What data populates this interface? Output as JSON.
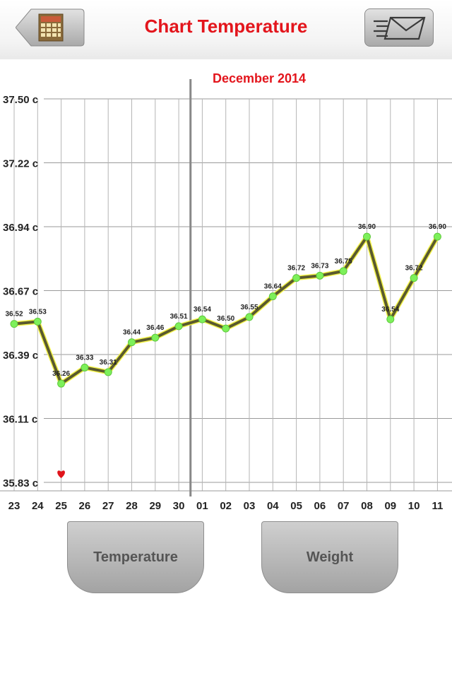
{
  "header": {
    "title": "Chart Temperature",
    "back_icon": "calendar-icon",
    "share_icon": "mail-icon",
    "title_color": "#e3151c"
  },
  "buttons": {
    "temperature": "Temperature",
    "weight": "Weight"
  },
  "chart_data": {
    "type": "line",
    "title": "December 2014",
    "y_ticks": [
      "37.50 c",
      "37.22 c",
      "36.94 c",
      "36.67 c",
      "36.39 c",
      "36.11 c",
      "35.83 c"
    ],
    "ylim": [
      35.83,
      37.5
    ],
    "categories": [
      "23",
      "24",
      "25",
      "26",
      "27",
      "28",
      "29",
      "30",
      "01",
      "02",
      "03",
      "04",
      "05",
      "06",
      "07",
      "08",
      "09",
      "10",
      "11"
    ],
    "values": [
      36.52,
      36.53,
      36.26,
      36.33,
      36.31,
      36.44,
      36.46,
      36.51,
      36.54,
      36.5,
      36.55,
      36.64,
      36.72,
      36.73,
      36.75,
      36.9,
      36.54,
      36.72,
      36.9
    ],
    "data_labels": [
      "36.52",
      "36.53",
      "36.26",
      "36.33",
      "36.31",
      "36.44",
      "36.46",
      "36.51",
      "36.54",
      "36.50",
      "36.55",
      "36.64",
      "36.72",
      "36.73",
      "36.75",
      "36.90",
      "36.54",
      "36.72",
      "36.90"
    ],
    "month_divider_before": "01",
    "marker": {
      "category": "25",
      "icon": "heart-icon",
      "color": "#e0141b"
    },
    "line_color": "#5a5a2e",
    "line_glow_color": "#f2f24a",
    "point_color": "#7df05a",
    "grid": true
  }
}
